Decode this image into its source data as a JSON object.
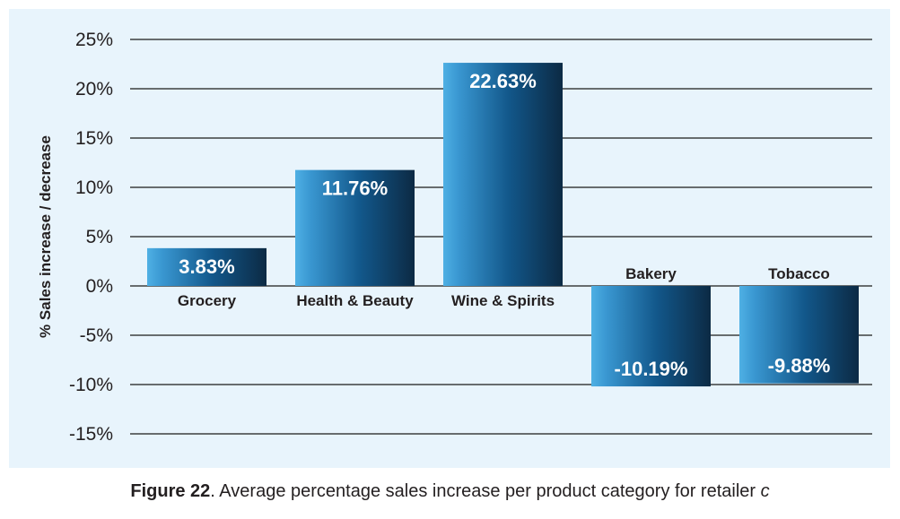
{
  "chart_data": {
    "type": "bar",
    "categories": [
      "Grocery",
      "Health & Beauty",
      "Wine & Spirits",
      "Bakery",
      "Tobacco"
    ],
    "values": [
      3.83,
      11.76,
      22.63,
      -10.19,
      -9.88
    ],
    "data_labels": [
      "3.83%",
      "11.76%",
      "22.63%",
      "-10.19%",
      "-9.88%"
    ],
    "ylabel": "% Sales increase / decrease",
    "ylim": [
      -15,
      25
    ],
    "yticks": [
      25,
      20,
      15,
      10,
      5,
      0,
      -5,
      -10,
      -15
    ],
    "ytick_labels": [
      "25%",
      "20%",
      "15%",
      "10%",
      "5%",
      "0%",
      "-5%",
      "-10%",
      "-15%"
    ],
    "grid": true,
    "legend": "none",
    "background_color": "#e8f4fc",
    "bar_color_light": "#4fb0e4",
    "bar_color_dark": "#0c2a44"
  },
  "caption": {
    "figure_label": "Figure 22",
    "text": ". Average percentage sales increase per product category for retailer ",
    "variable": "c"
  }
}
